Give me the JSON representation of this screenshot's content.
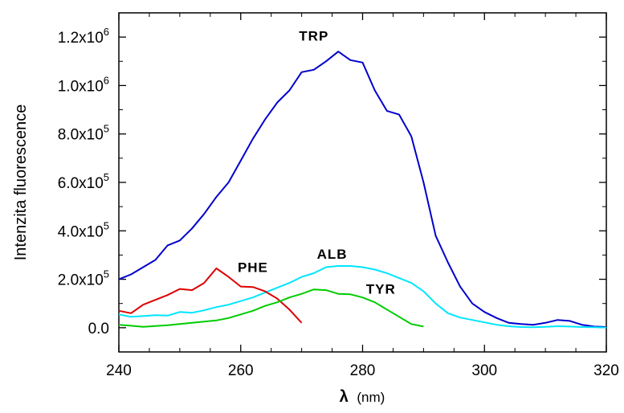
{
  "chart_data": {
    "type": "line",
    "xlabel_symbol": "λ",
    "xlabel_unit": "(nm)",
    "ylabel": "Intenzita fluorescence",
    "xlim": [
      240,
      320
    ],
    "ylim": [
      -100000,
      1300000
    ],
    "x_ticks": [
      240,
      260,
      280,
      300,
      320
    ],
    "y_ticks": [
      {
        "value": 0,
        "mantissa": "0.0",
        "exp": ""
      },
      {
        "value": 200000,
        "mantissa": "2.0x10",
        "exp": "5"
      },
      {
        "value": 400000,
        "mantissa": "4.0x10",
        "exp": "5"
      },
      {
        "value": 600000,
        "mantissa": "6.0x10",
        "exp": "5"
      },
      {
        "value": 800000,
        "mantissa": "8.0x10",
        "exp": "5"
      },
      {
        "value": 1000000,
        "mantissa": "1.0x10",
        "exp": "6"
      },
      {
        "value": 1200000,
        "mantissa": "1.2x10",
        "exp": "6"
      }
    ],
    "grid": false,
    "legend": "none",
    "series": [
      {
        "name": "TRP",
        "color": "#0000cc",
        "label_at": [
          272,
          1185000
        ],
        "points": [
          [
            240,
            200000
          ],
          [
            242,
            220000
          ],
          [
            244,
            250000
          ],
          [
            246,
            280000
          ],
          [
            248,
            340000
          ],
          [
            250,
            360000
          ],
          [
            252,
            410000
          ],
          [
            254,
            470000
          ],
          [
            256,
            540000
          ],
          [
            258,
            600000
          ],
          [
            260,
            690000
          ],
          [
            262,
            780000
          ],
          [
            264,
            860000
          ],
          [
            266,
            930000
          ],
          [
            268,
            980000
          ],
          [
            270,
            1055000
          ],
          [
            272,
            1065000
          ],
          [
            274,
            1100000
          ],
          [
            276,
            1140000
          ],
          [
            278,
            1105000
          ],
          [
            280,
            1095000
          ],
          [
            282,
            980000
          ],
          [
            284,
            895000
          ],
          [
            286,
            880000
          ],
          [
            288,
            790000
          ],
          [
            290,
            600000
          ],
          [
            292,
            380000
          ],
          [
            294,
            270000
          ],
          [
            296,
            170000
          ],
          [
            298,
            100000
          ],
          [
            300,
            65000
          ],
          [
            302,
            40000
          ],
          [
            304,
            20000
          ],
          [
            306,
            15000
          ],
          [
            308,
            12000
          ],
          [
            310,
            20000
          ],
          [
            312,
            32000
          ],
          [
            314,
            28000
          ],
          [
            316,
            12000
          ],
          [
            318,
            5000
          ],
          [
            320,
            3000
          ]
        ]
      },
      {
        "name": "ALB",
        "color": "#00e5ff",
        "label_at": [
          275,
          285000
        ],
        "points": [
          [
            240,
            55000
          ],
          [
            242,
            45000
          ],
          [
            244,
            48000
          ],
          [
            246,
            52000
          ],
          [
            248,
            50000
          ],
          [
            250,
            65000
          ],
          [
            252,
            62000
          ],
          [
            254,
            72000
          ],
          [
            256,
            85000
          ],
          [
            258,
            95000
          ],
          [
            260,
            110000
          ],
          [
            262,
            125000
          ],
          [
            264,
            145000
          ],
          [
            266,
            165000
          ],
          [
            268,
            185000
          ],
          [
            270,
            210000
          ],
          [
            272,
            225000
          ],
          [
            274,
            250000
          ],
          [
            276,
            255000
          ],
          [
            278,
            255000
          ],
          [
            280,
            250000
          ],
          [
            282,
            240000
          ],
          [
            284,
            225000
          ],
          [
            286,
            205000
          ],
          [
            288,
            185000
          ],
          [
            290,
            150000
          ],
          [
            292,
            100000
          ],
          [
            294,
            60000
          ],
          [
            296,
            42000
          ],
          [
            298,
            32000
          ],
          [
            300,
            22000
          ],
          [
            302,
            12000
          ],
          [
            304,
            6000
          ],
          [
            306,
            3000
          ],
          [
            308,
            2000
          ],
          [
            310,
            4000
          ],
          [
            312,
            6000
          ],
          [
            314,
            5000
          ],
          [
            316,
            3000
          ],
          [
            318,
            2000
          ],
          [
            320,
            1000
          ]
        ]
      },
      {
        "name": "PHE",
        "color": "#dd0000",
        "label_at": [
          262,
          230000
        ],
        "points": [
          [
            240,
            70000
          ],
          [
            242,
            60000
          ],
          [
            244,
            95000
          ],
          [
            246,
            115000
          ],
          [
            248,
            135000
          ],
          [
            250,
            160000
          ],
          [
            252,
            155000
          ],
          [
            254,
            185000
          ],
          [
            256,
            245000
          ],
          [
            258,
            210000
          ],
          [
            260,
            170000
          ],
          [
            262,
            168000
          ],
          [
            264,
            150000
          ],
          [
            266,
            120000
          ],
          [
            268,
            75000
          ],
          [
            270,
            20000
          ]
        ]
      },
      {
        "name": "TYR",
        "color": "#00cc00",
        "label_at": [
          283,
          140000
        ],
        "points": [
          [
            240,
            12000
          ],
          [
            242,
            8000
          ],
          [
            244,
            4000
          ],
          [
            246,
            7000
          ],
          [
            248,
            10000
          ],
          [
            250,
            15000
          ],
          [
            252,
            20000
          ],
          [
            254,
            25000
          ],
          [
            256,
            30000
          ],
          [
            258,
            40000
          ],
          [
            260,
            55000
          ],
          [
            262,
            70000
          ],
          [
            264,
            90000
          ],
          [
            266,
            105000
          ],
          [
            268,
            125000
          ],
          [
            270,
            140000
          ],
          [
            272,
            158000
          ],
          [
            274,
            155000
          ],
          [
            276,
            140000
          ],
          [
            278,
            138000
          ],
          [
            280,
            125000
          ],
          [
            282,
            105000
          ],
          [
            284,
            75000
          ],
          [
            286,
            45000
          ],
          [
            288,
            15000
          ],
          [
            290,
            5000
          ]
        ]
      }
    ]
  }
}
